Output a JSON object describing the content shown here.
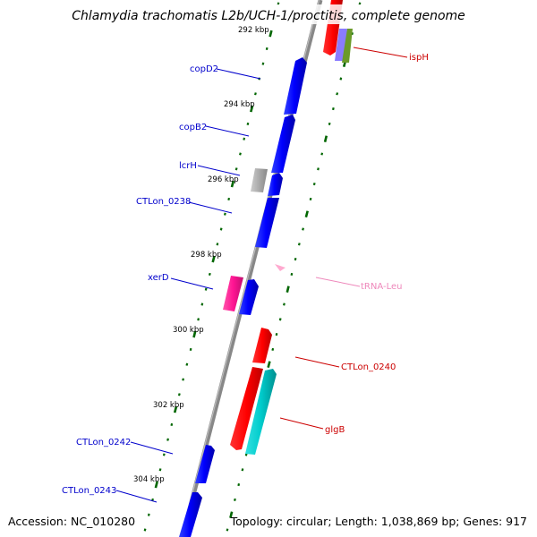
{
  "title": "Chlamydia trachomatis L2b/UCH-1/proctitis, complete genome",
  "footer": {
    "accession": "Accession: NC_010280",
    "summary": "Topology: circular; Length: 1,038,869 bp; Genes: 917"
  },
  "colors": {
    "backbone": "#888888",
    "ticks": "#006600",
    "blue": "#0000ff",
    "red": "#ff0000",
    "cyan": "#00cccc",
    "magenta": "#ff1493",
    "gray": "#aaaaaa",
    "purple": "#8a7bff",
    "olive": "#6b9a2a",
    "pink": "#ffaad0",
    "label_blue": "#0000cc",
    "label_red": "#cc0000",
    "label_pink": "#ee88bb"
  },
  "scale_ticks": [
    "292 kbp",
    "294 kbp",
    "296 kbp",
    "298 kbp",
    "300 kbp",
    "302 kbp",
    "304 kbp"
  ],
  "gene_labels": {
    "ispH": "ispH",
    "copD2": "copD2",
    "copB2": "copB2",
    "lcrH": "lcrH",
    "CTLon_0238": "CTLon_0238",
    "xerD": "xerD",
    "tRNA_Leu": "tRNA-Leu",
    "CTLon_0240": "CTLon_0240",
    "glgB": "glgB",
    "CTLon_0242": "CTLon_0242",
    "CTLon_0243": "CTLon_0243"
  }
}
